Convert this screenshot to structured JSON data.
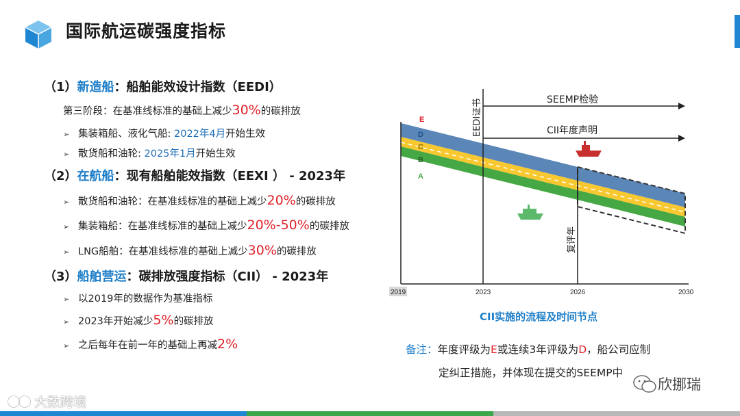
{
  "header": {
    "title": "国际航运碳强度指标",
    "logo_icon": "cube-icon"
  },
  "sections": [
    {
      "prefix": "（1）",
      "highlight": "新造船",
      "rest": "：船舶能效设计指数（EEDI）",
      "lines": [
        {
          "pre": "第三阶段：在基准线标准的基础上减少",
          "red": "30%",
          "post": "的碳排放"
        },
        {
          "bullet": "➢",
          "pre": "集装箱船、液化气船: ",
          "blue": "2022年4月",
          "post": "开始生效"
        },
        {
          "bullet": "➢",
          "pre": "散货船和油轮: ",
          "blue": "2025年1月",
          "post": "开始生效"
        }
      ]
    },
    {
      "prefix": "（2）",
      "highlight": "在航船",
      "rest": "：现有船舶能效指数（EEXI ） -  2023年",
      "lines": [
        {
          "bullet": "➢",
          "pre": "散货船和油轮：在基准线标准的基础上减少",
          "red": "20%",
          "post": "的碳排放"
        },
        {
          "bullet": "➢",
          "pre": "集装箱船：在基准线标准的基础上减少",
          "red": "20%-50%",
          "post": "的碳排放"
        },
        {
          "bullet": "➢",
          "pre": "LNG船舶：在基准线标准的基础上减少",
          "red": "30%",
          "post": "的碳排放"
        }
      ]
    },
    {
      "prefix": "（3）",
      "highlight": "船舶营运",
      "rest": "：碳排放强度指标（CII） -  2023年",
      "lines": [
        {
          "bullet": "➢",
          "pre": "以2019年的数据作为基准指标"
        },
        {
          "bullet": "➢",
          "pre": "2023年开始减少",
          "red": "5%",
          "post": "的碳排放"
        },
        {
          "bullet": "➢",
          "pre": "之后每年在前一年的基础上再减",
          "red": "2%"
        }
      ]
    }
  ],
  "diagram": {
    "x_ticks": [
      "2019",
      "2023",
      "2026",
      "2030"
    ],
    "grades": [
      "E",
      "D",
      "C",
      "B",
      "A"
    ],
    "arrow1_label": "SEEMP检验",
    "arrow2_label": "CII年度声明",
    "eedi_label": "EEDI证书",
    "review_label": "复评年",
    "colors": {
      "blue_band": "#5b86b8",
      "yellow_band": "#f8c830",
      "green_band": "#45a844"
    }
  },
  "caption": "CII实施的流程及时间节点",
  "note": {
    "label": "备注：",
    "t1": "年度评级为",
    "e": "E",
    "t2": "或连续3年评级为",
    "d": "D",
    "t3": "，船公司应制",
    "line2": "定纠正措施，并体现在提交的SEEMP中"
  },
  "watermarks": {
    "left": "大数跨境",
    "right": "欣挪瑞"
  },
  "footer": {
    "colors": [
      "#1f86d1",
      "#3aa84a",
      "#b8b8b8"
    ]
  }
}
